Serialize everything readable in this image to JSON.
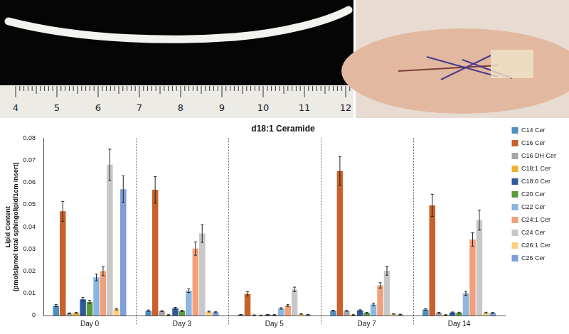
{
  "ruler_labels": [
    4,
    5,
    6,
    7,
    8,
    9,
    10,
    11,
    12
  ],
  "chart_data": {
    "type": "bar",
    "title": "d18:1 Ceramide",
    "y_label": "Lipid Content (pmols/pmol total sphingolipid/1cm insert)",
    "categories": [
      "Day 0",
      "Day 3",
      "Day 5",
      "Day 7",
      "Day 14"
    ],
    "ylim": [
      0,
      0.08
    ],
    "yticks": [
      0,
      0.01,
      0.02,
      0.03,
      0.04,
      0.05,
      0.06,
      0.07,
      0.08
    ],
    "grid": false,
    "legend": "right",
    "series": [
      {
        "name": "C14 Cer",
        "color": "#4e8fc1",
        "values": [
          0.0045,
          0.0022,
          0.0004,
          0.0022,
          0.0027
        ],
        "errors": [
          0.0005,
          0.0003,
          0.0001,
          0.0002,
          0.0003
        ]
      },
      {
        "name": "C16 Cer",
        "color": "#c8622a",
        "values": [
          0.047,
          0.0567,
          0.0098,
          0.0652,
          0.0497
        ],
        "errors": [
          0.0045,
          0.006,
          0.001,
          0.0065,
          0.005
        ]
      },
      {
        "name": "C16 DH Cer",
        "color": "#a5a5a5",
        "values": [
          0.001,
          0.002,
          0.0002,
          0.0021,
          0.0012
        ],
        "errors": [
          0.0002,
          0.0002,
          0.0001,
          0.0002,
          0.0002
        ]
      },
      {
        "name": "C18:1 Cer",
        "color": "#f0b030",
        "values": [
          0.0012,
          0.0003,
          0.0001,
          0.0003,
          0.0003
        ],
        "errors": [
          0.0002,
          0.0001,
          0.0001,
          0.0001,
          0.0001
        ]
      },
      {
        "name": "C18:0 Cer",
        "color": "#2e5a9c",
        "values": [
          0.0073,
          0.0033,
          0.0004,
          0.0023,
          0.0014
        ],
        "errors": [
          0.0008,
          0.0004,
          0.0001,
          0.0003,
          0.0002
        ]
      },
      {
        "name": "C20 Cer",
        "color": "#5a9a3a",
        "values": [
          0.0062,
          0.0021,
          0.0003,
          0.0012,
          0.0013
        ],
        "errors": [
          0.0007,
          0.0003,
          0.0001,
          0.0002,
          0.0002
        ]
      },
      {
        "name": "C22 Cer",
        "color": "#8ab6e0",
        "values": [
          0.0172,
          0.0112,
          0.0032,
          0.005,
          0.01
        ],
        "errors": [
          0.0015,
          0.0008,
          0.0003,
          0.0006,
          0.0009
        ]
      },
      {
        "name": "C24:1 Cer",
        "color": "#f0a07a",
        "values": [
          0.02,
          0.0302,
          0.0045,
          0.0136,
          0.0343
        ],
        "errors": [
          0.002,
          0.003,
          0.0004,
          0.0012,
          0.003
        ]
      },
      {
        "name": "C24 Cer",
        "color": "#c8c8c8",
        "values": [
          0.068,
          0.037,
          0.0118,
          0.0202,
          0.043
        ],
        "errors": [
          0.007,
          0.004,
          0.001,
          0.002,
          0.0045
        ]
      },
      {
        "name": "C26:1 Cer",
        "color": "#fad080",
        "values": [
          0.0028,
          0.0018,
          0.0007,
          0.0007,
          0.0013
        ],
        "errors": [
          0.0003,
          0.0002,
          0.0001,
          0.0001,
          0.0002
        ]
      },
      {
        "name": "C26 Cer",
        "color": "#7f9fd8",
        "values": [
          0.057,
          0.0015,
          0.0004,
          0.0005,
          0.0012
        ],
        "errors": [
          0.006,
          0.0002,
          0.0001,
          0.0001,
          0.0002
        ]
      }
    ]
  }
}
